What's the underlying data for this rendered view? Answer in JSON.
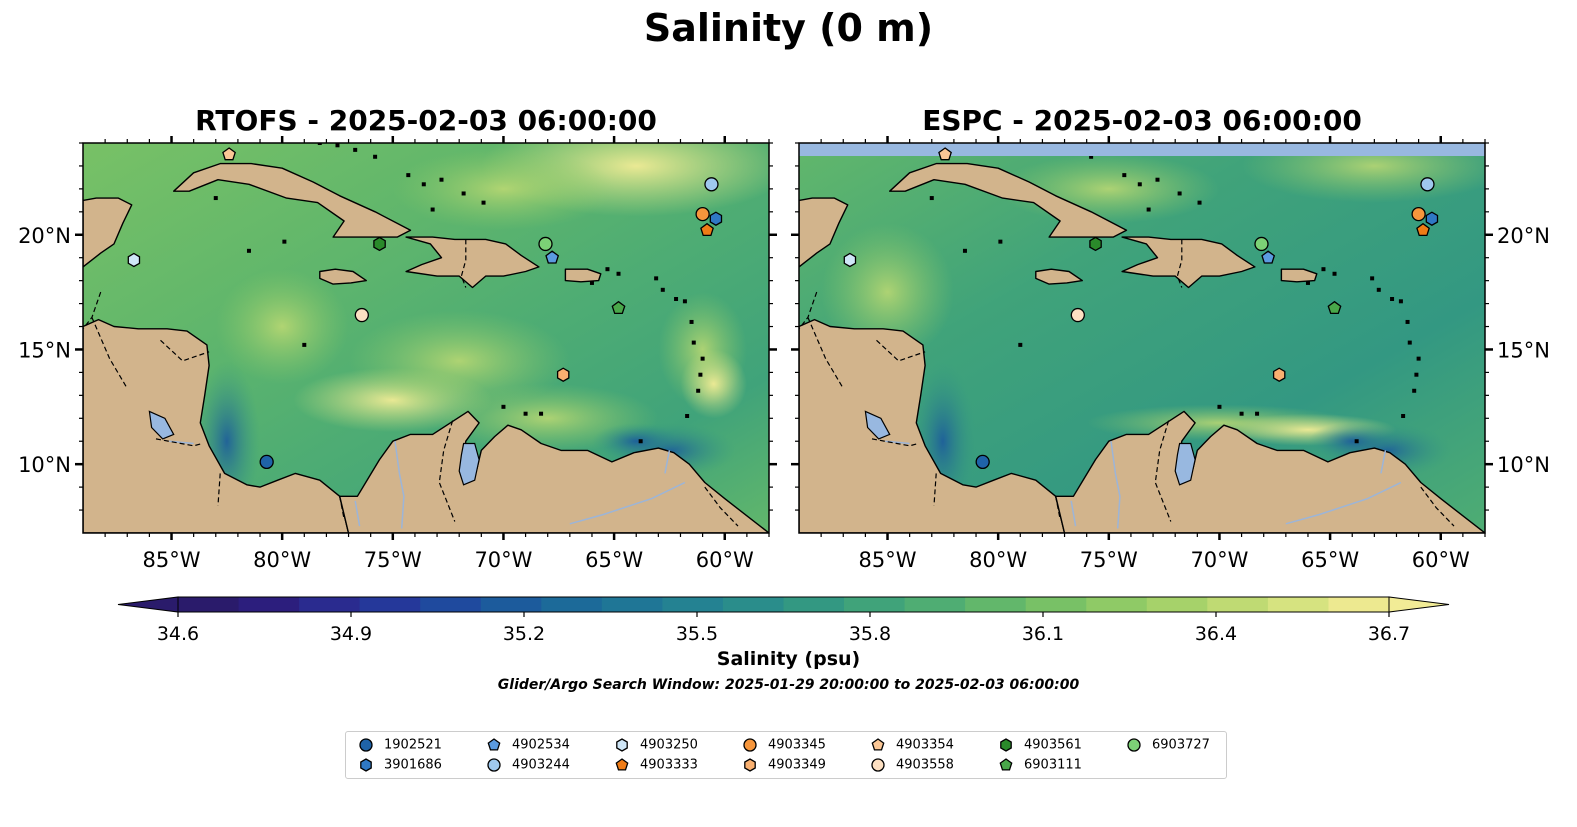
{
  "figure": {
    "title": "Salinity (0 m)",
    "panels": [
      {
        "title": "RTOFS - 2025-02-03 06:00:00"
      },
      {
        "title": "ESPC - 2025-02-03 06:00:00"
      }
    ],
    "lon_ticks": [
      "85°W",
      "80°W",
      "75°W",
      "70°W",
      "65°W",
      "60°W"
    ],
    "lat_ticks": [
      "20°N",
      "15°N",
      "10°N"
    ],
    "colorbar": {
      "label": "Salinity (psu)",
      "ticks": [
        "34.6",
        "34.9",
        "35.2",
        "35.5",
        "35.8",
        "36.1",
        "36.4",
        "36.7"
      ],
      "colors": [
        "#2a1b6b",
        "#2c1e7d",
        "#2a2b8f",
        "#25389a",
        "#1f4a9e",
        "#1c5b9c",
        "#1c6a99",
        "#1f7696",
        "#248292",
        "#2a8d8b",
        "#339882",
        "#40a37a",
        "#4fad73",
        "#62b76b",
        "#78c166",
        "#8fca66",
        "#a6d26a",
        "#bfda73",
        "#d6e380",
        "#ede990"
      ]
    },
    "search_window": "Glider/Argo Search Window: 2025-01-29 20:00:00 to 2025-02-03 06:00:00",
    "colors": {
      "land": "#d2b48c",
      "ocean_deep": "#2a1b6b",
      "ocean_mid": "#3e9a7f",
      "ocean_fresh": "#8fca66",
      "ocean_salty": "#f2ec96",
      "lake": "#98b8e0"
    }
  },
  "map_extent": {
    "lon": [
      -89,
      -58
    ],
    "lat": [
      7,
      24
    ]
  },
  "floats": [
    {
      "id": "1902521",
      "marker": "circle",
      "color": "#1f63a8",
      "lon": -80.7,
      "lat": 10.1
    },
    {
      "id": "3901686",
      "marker": "hexagon",
      "color": "#2f78c4",
      "lon": -60.4,
      "lat": 20.7
    },
    {
      "id": "4902534",
      "marker": "pentagon",
      "color": "#5b9be0",
      "lon": -67.8,
      "lat": 19.0
    },
    {
      "id": "4903244",
      "marker": "circle",
      "color": "#9fc8ee",
      "lon": -60.6,
      "lat": 22.2
    },
    {
      "id": "4903250",
      "marker": "hexagon",
      "color": "#cfe6f7",
      "lon": -86.7,
      "lat": 18.9
    },
    {
      "id": "4903333",
      "marker": "pentagon",
      "color": "#f07c16",
      "lon": -60.8,
      "lat": 20.2
    },
    {
      "id": "4903345",
      "marker": "circle",
      "color": "#f6963c",
      "lon": -61.0,
      "lat": 20.9
    },
    {
      "id": "4903349",
      "marker": "hexagon",
      "color": "#f9b070",
      "lon": -67.3,
      "lat": 13.9
    },
    {
      "id": "4903354",
      "marker": "pentagon",
      "color": "#fbc796",
      "lon": -82.4,
      "lat": 23.5
    },
    {
      "id": "4903558",
      "marker": "circle",
      "color": "#fde0c2",
      "lon": -76.4,
      "lat": 16.5
    },
    {
      "id": "4903561",
      "marker": "hexagon",
      "color": "#2a8a2a",
      "lon": -75.6,
      "lat": 19.6
    },
    {
      "id": "6903111",
      "marker": "pentagon",
      "color": "#49a84a",
      "lon": -64.8,
      "lat": 16.8
    },
    {
      "id": "6903727",
      "marker": "circle",
      "color": "#7cd276",
      "lon": -68.1,
      "lat": 19.6
    }
  ]
}
